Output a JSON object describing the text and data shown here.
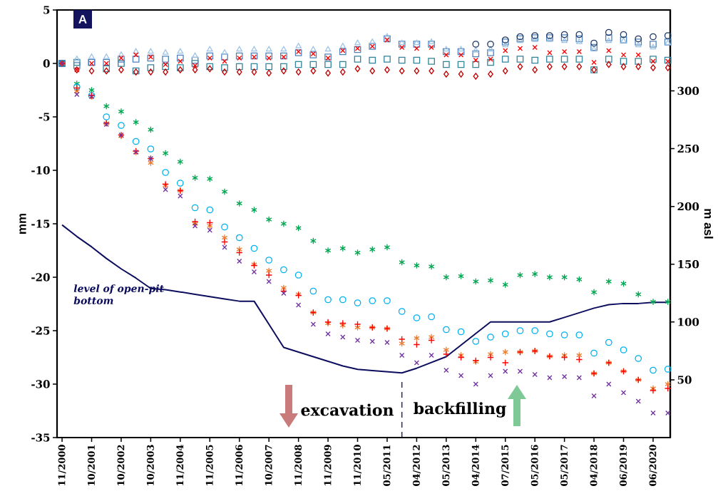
{
  "chart_data": {
    "type": "scatter",
    "categories": [
      "11/2000",
      null,
      "10/2001",
      null,
      "10/2002",
      null,
      "10/2003",
      null,
      "11/2004",
      null,
      "11/2005",
      null,
      "11/2006",
      null,
      "10/2007",
      null,
      "11/2008",
      null,
      "11/2009",
      null,
      "11/2010",
      null,
      "05/2011",
      null,
      "04/2012",
      null,
      "05/2013",
      null,
      "04/2014",
      null,
      "07/2015",
      null,
      "05/2016",
      null,
      "05/2017",
      null,
      "04/2018",
      null,
      "06/2019",
      null,
      "06/2020",
      null
    ],
    "ylabel": "mm",
    "y2label": "m asl",
    "ylim": [
      -35,
      5
    ],
    "yticks": [
      5,
      0,
      -5,
      -10,
      -15,
      -20,
      -25,
      -30,
      -35
    ],
    "y2lim": [
      0,
      370
    ],
    "y2ticks": [
      50,
      100,
      150,
      200,
      250,
      300
    ],
    "series": [
      {
        "color": "#31849b",
        "marker": "square",
        "values": [
          0,
          0.1,
          0.1,
          -0.5,
          0.0,
          -0.7,
          -0.4,
          -0.3,
          -0.4,
          0.0,
          -0.3,
          -0.4,
          -0.3,
          -0.3,
          -0.3,
          -0.3,
          -0.1,
          -0.1,
          -0.1,
          -0.1,
          0.4,
          0.3,
          0.4,
          0.3,
          0.3,
          0.2,
          -0.1,
          -0.1,
          -0.1,
          0.1,
          0.4,
          0.4,
          0.3,
          0.4,
          0.4,
          0.4,
          -0.6,
          0.4,
          0.2,
          0.2,
          0.4,
          0.3
        ]
      },
      {
        "color": "#4f81bd",
        "marker": "square",
        "values": [
          0,
          -0.2,
          0.1,
          0.1,
          0.4,
          0.4,
          0.5,
          0.4,
          0.5,
          0.3,
          0.7,
          0.6,
          0.7,
          0.7,
          0.7,
          0.7,
          1.0,
          0.8,
          0.6,
          1.1,
          1.3,
          1.6,
          2.3,
          1.8,
          1.8,
          1.8,
          1.1,
          1.1,
          0.9,
          1.0,
          2.0,
          2.3,
          2.4,
          2.4,
          2.4,
          2.3,
          1.5,
          2.4,
          2.2,
          2.0,
          1.8,
          2.0
        ]
      },
      {
        "color": "#9dc3e6",
        "marker": "triangle",
        "values": [
          0,
          0.4,
          0.6,
          0.6,
          0.8,
          1.1,
          1.1,
          1.0,
          1.1,
          0.7,
          1.3,
          1.0,
          1.3,
          1.3,
          1.3,
          1.3,
          1.6,
          1.3,
          1.3,
          1.6,
          1.9,
          2.0,
          2.5,
          1.9,
          1.9,
          2.0,
          1.3,
          1.3,
          1.2,
          1.3,
          1.7,
          2.1,
          2.2,
          2.2,
          2.1,
          2.0,
          1.3,
          2.1,
          2.1,
          1.7,
          1.5,
          1.9
        ]
      },
      {
        "color": "#1f3864",
        "marker": "circle",
        "values": [
          0,
          null,
          null,
          null,
          null,
          null,
          null,
          null,
          null,
          null,
          null,
          null,
          null,
          null,
          null,
          null,
          null,
          null,
          null,
          null,
          null,
          null,
          null,
          null,
          null,
          null,
          null,
          null,
          1.8,
          1.8,
          2.2,
          2.5,
          2.6,
          2.6,
          2.7,
          2.7,
          1.9,
          2.9,
          2.7,
          2.3,
          2.5,
          2.6
        ]
      },
      {
        "color": "#c00000",
        "marker": "diamond",
        "values": [
          0,
          -0.6,
          -0.7,
          -0.7,
          -0.6,
          -0.8,
          -0.8,
          -0.8,
          -0.6,
          -0.6,
          -0.5,
          -0.8,
          -0.8,
          -0.8,
          -0.9,
          -0.7,
          -0.8,
          -0.7,
          -0.9,
          -0.8,
          -0.5,
          -0.7,
          -0.6,
          -0.7,
          -0.7,
          -0.7,
          -1.0,
          -1.0,
          -1.2,
          -1.0,
          -0.7,
          -0.3,
          -0.6,
          -0.3,
          -0.3,
          -0.3,
          -0.6,
          -0.1,
          -0.3,
          -0.3,
          -0.4,
          -0.4
        ]
      },
      {
        "color": "#ff0000",
        "marker": "cross",
        "values": [
          0,
          -0.6,
          0.0,
          0.0,
          0.5,
          0.8,
          0.6,
          -0.1,
          0.2,
          -0.2,
          0.5,
          0.2,
          0.5,
          0.6,
          0.5,
          0.6,
          1.1,
          0.9,
          0.5,
          1.2,
          1.4,
          1.6,
          2.2,
          1.5,
          1.4,
          1.5,
          0.8,
          0.8,
          0.3,
          0.4,
          1.2,
          1.4,
          1.5,
          1.0,
          1.1,
          1.1,
          0.1,
          1.2,
          0.8,
          0.8,
          0.2,
          0.2
        ]
      },
      {
        "color": "#00a651",
        "values": [
          0,
          -1.9,
          -2.5,
          -4.0,
          -4.5,
          -5.5,
          -6.2,
          -8.4,
          -9.2,
          -10.7,
          -10.8,
          -12.0,
          -13.1,
          -13.7,
          -14.6,
          -15.0,
          -15.4,
          -16.6,
          -17.5,
          -17.3,
          -17.7,
          -17.4,
          -17.2,
          -18.6,
          -18.9,
          -19.0,
          -20.0,
          -19.9,
          -20.4,
          -20.3,
          -20.7,
          -19.8,
          -19.7,
          -20.0,
          -20.0,
          -20.2,
          -21.4,
          -20.4,
          -20.6,
          -21.6,
          -22.3,
          -22.3
        ]
      },
      {
        "color": "#00b0f0",
        "marker": "circle",
        "values": [
          0,
          -2.2,
          -3.0,
          -5.0,
          -5.8,
          -7.3,
          -8.0,
          -10.2,
          -11.2,
          -13.5,
          -13.7,
          -15.3,
          -16.3,
          -17.3,
          -18.4,
          -19.3,
          -19.8,
          -21.3,
          -22.1,
          -22.1,
          -22.4,
          -22.2,
          -22.2,
          -23.2,
          -23.8,
          -23.7,
          -24.9,
          -25.1,
          -26.0,
          -25.6,
          -25.3,
          -25.0,
          -25.0,
          -25.3,
          -25.4,
          -25.4,
          -27.1,
          -26.1,
          -26.8,
          -27.6,
          -28.7,
          -28.6
        ]
      },
      {
        "color": "#ed7d31",
        "values": [
          0,
          -2.6,
          -3.1,
          -5.6,
          -6.8,
          -8.3,
          -9.3,
          -11.4,
          -11.9,
          -15.0,
          -15.2,
          -16.3,
          -17.4,
          -18.8,
          -19.4,
          -21.0,
          -21.6,
          -23.3,
          -24.3,
          -24.5,
          -24.7,
          -24.7,
          -24.8,
          -26.2,
          -25.7,
          -25.6,
          -26.8,
          -27.3,
          -27.9,
          -27.2,
          -27.0,
          -27.0,
          -26.9,
          -27.4,
          -27.3,
          -27.3,
          -29.0,
          -28.0,
          -28.8,
          -29.6,
          -30.4,
          -30.0
        ]
      },
      {
        "color": "#ff0000",
        "marker": "plus",
        "values": [
          0,
          -2.3,
          -3.0,
          -5.6,
          -6.7,
          -8.2,
          -8.9,
          -11.3,
          -11.9,
          -14.8,
          -14.9,
          -16.7,
          -17.7,
          -18.9,
          -19.8,
          -21.3,
          -21.7,
          -23.3,
          -24.2,
          -24.3,
          -24.4,
          -24.7,
          -24.8,
          -25.8,
          -26.3,
          -25.9,
          -27.2,
          -27.5,
          -27.8,
          -27.5,
          -28.0,
          -27.0,
          -26.9,
          -27.4,
          -27.5,
          -27.7,
          -29.0,
          -28.0,
          -28.8,
          -29.6,
          -30.6,
          -30.4
        ]
      },
      {
        "color": "#7030a0",
        "marker": "cross",
        "values": [
          0,
          -2.9,
          -3.1,
          -5.7,
          -6.7,
          -8.3,
          -8.9,
          -11.8,
          -12.4,
          -15.2,
          -15.6,
          -17.2,
          -18.5,
          -19.5,
          -20.4,
          -21.5,
          -22.6,
          -24.4,
          -25.3,
          -25.6,
          -25.9,
          -26.0,
          -26.1,
          -27.3,
          -28.0,
          -27.3,
          -28.7,
          -29.2,
          -30.0,
          -29.2,
          -28.8,
          -28.8,
          -29.1,
          -29.4,
          -29.3,
          -29.4,
          -31.1,
          -30.0,
          -30.8,
          -31.6,
          -32.7,
          -32.7
        ]
      },
      {
        "type": "line",
        "axis": "y2",
        "name": "level of open-pit bottom",
        "color": "#0d0d5e",
        "marker": "none",
        "line_style": "solid",
        "values": [
          184,
          174,
          165,
          155,
          146,
          138,
          129,
          128,
          126,
          124,
          122,
          120,
          118,
          118,
          98,
          78,
          74,
          70,
          66,
          62,
          59,
          58,
          57,
          56,
          60,
          65,
          70,
          80,
          90,
          100,
          100,
          100,
          100,
          100,
          104,
          108,
          112,
          115,
          116,
          116,
          117,
          117
        ]
      }
    ],
    "annotations": [
      "A",
      "excavation",
      "backfilling"
    ]
  }
}
